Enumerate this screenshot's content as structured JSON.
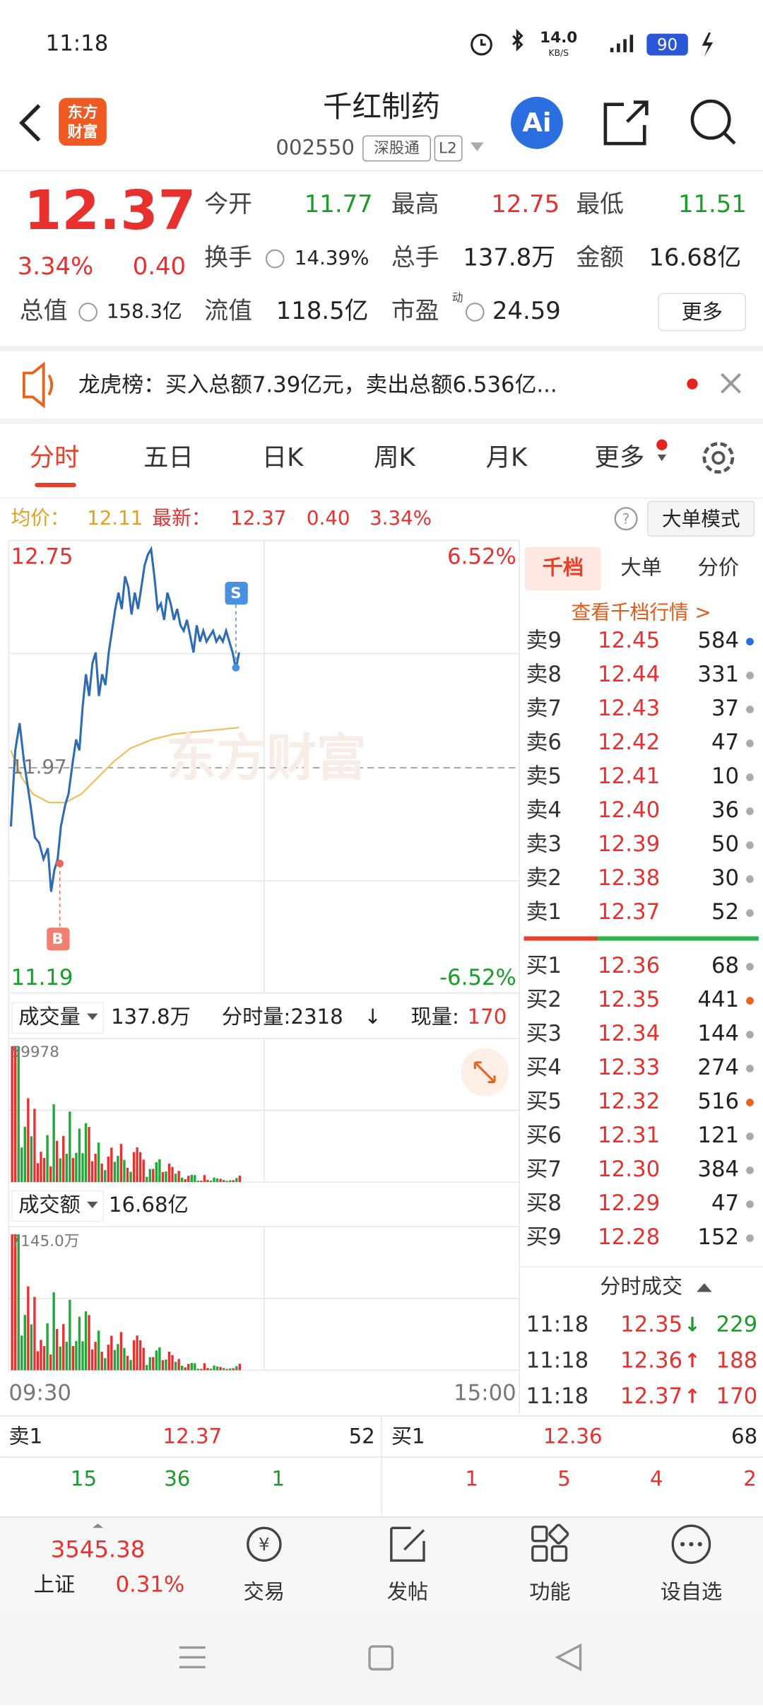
{
  "status_bar": {
    "time": "11:18",
    "speed": "14.0",
    "speed_unit": "KB/S",
    "battery": "90"
  },
  "header": {
    "logo": [
      "东方",
      "财富"
    ],
    "title": "千红制药",
    "code": "002550",
    "tags": [
      "深股通",
      "L2"
    ],
    "ai": "Ai"
  },
  "quote": {
    "price": "12.37",
    "change_pct": "3.34%",
    "change": "0.40",
    "fields": [
      {
        "label": "今开",
        "value": "11.77"
      },
      {
        "label": "最高",
        "value": "12.75"
      },
      {
        "label": "最低",
        "value": "11.51"
      },
      {
        "label": "换手",
        "value": "14.39%"
      },
      {
        "label": "总手",
        "value": "137.8万"
      },
      {
        "label": "金额",
        "value": "16.68亿"
      },
      {
        "label": "总值",
        "value": "158.3亿"
      },
      {
        "label": "流值",
        "value": "118.5亿"
      },
      {
        "label": "市盈",
        "value": "24.59"
      }
    ],
    "pe_sup": "动",
    "more": "更多"
  },
  "notice": "龙虎榜：买入总额7.39亿元，卖出总额6.536亿...",
  "tabs": [
    "分时",
    "五日",
    "日K",
    "周K",
    "月K",
    "更多"
  ],
  "info_bar": {
    "avg_label": "均价：",
    "avg": "12.11",
    "latest_label": "最新：",
    "latest": "12.37",
    "change": "0.40",
    "change_pct": "3.34%",
    "mode": "大单模式"
  },
  "chart": {
    "price_top": "12.75",
    "pct_top": "6.52%",
    "mid": "11.97",
    "price_bottom": "11.19",
    "pct_bottom": "-6.52%",
    "watermark": "东方财富",
    "sell_marker": "S",
    "buy_marker": "B"
  },
  "volume": {
    "label": "成交量",
    "total": "137.8万",
    "tick_label": "分时量:2318",
    "tick_arrow": "↓",
    "now_label": "现量:",
    "now": "170",
    "max": "59978"
  },
  "amount": {
    "label": "成交额",
    "total": "16.68亿",
    "max": "7145.0万"
  },
  "time_axis": [
    "09:30",
    "15:00"
  ],
  "order_book": {
    "tabs": [
      "千档",
      "大单",
      "分价"
    ],
    "link": "查看千档行情 >",
    "asks": [
      {
        "label": "卖9",
        "price": "12.45",
        "volume": "584",
        "dot": "#2a6ee0"
      },
      {
        "label": "卖8",
        "price": "12.44",
        "volume": "331",
        "dot": "#aaaaaa"
      },
      {
        "label": "卖7",
        "price": "12.43",
        "volume": "37",
        "dot": "#aaaaaa"
      },
      {
        "label": "卖6",
        "price": "12.42",
        "volume": "47",
        "dot": "#aaaaaa"
      },
      {
        "label": "卖5",
        "price": "12.41",
        "volume": "10",
        "dot": "#aaaaaa"
      },
      {
        "label": "卖4",
        "price": "12.40",
        "volume": "36",
        "dot": "#aaaaaa"
      },
      {
        "label": "卖3",
        "price": "12.39",
        "volume": "50",
        "dot": "#aaaaaa"
      },
      {
        "label": "卖2",
        "price": "12.38",
        "volume": "30",
        "dot": "#aaaaaa"
      },
      {
        "label": "卖1",
        "price": "12.37",
        "volume": "52",
        "dot": "#aaaaaa"
      }
    ],
    "bids": [
      {
        "label": "买1",
        "price": "12.36",
        "volume": "68",
        "dot": "#aaaaaa"
      },
      {
        "label": "买2",
        "price": "12.35",
        "volume": "441",
        "dot": "#e8641c"
      },
      {
        "label": "买3",
        "price": "12.34",
        "volume": "144",
        "dot": "#aaaaaa"
      },
      {
        "label": "买4",
        "price": "12.33",
        "volume": "274",
        "dot": "#aaaaaa"
      },
      {
        "label": "买5",
        "price": "12.32",
        "volume": "516",
        "dot": "#e8641c"
      },
      {
        "label": "买6",
        "price": "12.31",
        "volume": "121",
        "dot": "#aaaaaa"
      },
      {
        "label": "买7",
        "price": "12.30",
        "volume": "384",
        "dot": "#aaaaaa"
      },
      {
        "label": "买8",
        "price": "12.29",
        "volume": "47",
        "dot": "#aaaaaa"
      },
      {
        "label": "买9",
        "price": "12.28",
        "volume": "152",
        "dot": "#aaaaaa"
      }
    ]
  },
  "trades": {
    "title": "分时成交",
    "rows": [
      {
        "time": "11:18",
        "price": "12.35",
        "arrow": "↓",
        "volume": "229"
      },
      {
        "time": "11:18",
        "price": "12.36",
        "arrow": "↑",
        "volume": "188"
      },
      {
        "time": "11:18",
        "price": "12.37",
        "arrow": "↑",
        "volume": "170"
      }
    ]
  },
  "level1": {
    "sell": {
      "label": "卖1",
      "price": "12.37",
      "volume": "52",
      "queue": [
        "15",
        "36",
        "1"
      ]
    },
    "buy": {
      "label": "买1",
      "price": "12.36",
      "volume": "68",
      "queue": [
        "1",
        "5",
        "4",
        "2"
      ]
    }
  },
  "bottom_nav": {
    "index": {
      "value": "3545.38",
      "name": "上证",
      "change": "0.31%"
    },
    "items": [
      "交易",
      "发帖",
      "功能",
      "设自选"
    ]
  }
}
